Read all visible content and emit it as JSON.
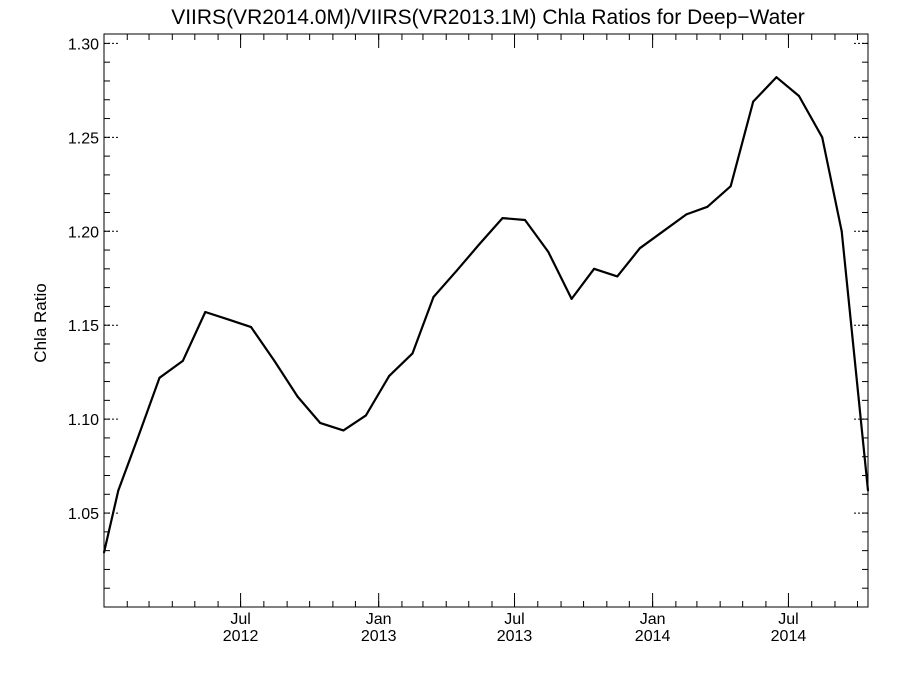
{
  "chart_data": {
    "type": "line",
    "title": "VIIRS(VR2014.0M)/VIIRS(VR2013.1M)  Chla Ratios for Deep−Water",
    "ylabel": "Chla Ratio",
    "xlabel": "",
    "ylim": [
      1.0,
      1.305
    ],
    "yticks": [
      "1.05",
      "1.10",
      "1.15",
      "1.20",
      "1.25",
      "1.30"
    ],
    "xticks": [
      {
        "month": "Jul",
        "year": "2012",
        "date": "2012-07-01"
      },
      {
        "month": "Jan",
        "year": "2013",
        "date": "2013-01-01"
      },
      {
        "month": "Jul",
        "year": "2013",
        "date": "2013-07-01"
      },
      {
        "month": "Jan",
        "year": "2014",
        "date": "2014-01-01"
      },
      {
        "month": "Jul",
        "year": "2014",
        "date": "2014-07-01"
      }
    ],
    "xlim": [
      "2012-01-01",
      "2014-10-15"
    ],
    "grid": false,
    "series": [
      {
        "name": "",
        "color": "#000000",
        "x": [
          "2012-01-01",
          "2012-01-20",
          "2012-02-15",
          "2012-03-15",
          "2012-04-15",
          "2012-05-15",
          "2012-06-15",
          "2012-07-15",
          "2012-08-15",
          "2012-09-15",
          "2012-10-15",
          "2012-11-15",
          "2012-12-15",
          "2013-01-15",
          "2013-02-15",
          "2013-03-15",
          "2013-04-15",
          "2013-05-15",
          "2013-06-15",
          "2013-07-15",
          "2013-08-15",
          "2013-09-15",
          "2013-10-15",
          "2013-11-15",
          "2013-12-15",
          "2014-01-15",
          "2014-02-15",
          "2014-03-15",
          "2014-04-15",
          "2014-05-15",
          "2014-06-15",
          "2014-07-15",
          "2014-08-15",
          "2014-09-10",
          "2014-10-15"
        ],
        "values": [
          1.029,
          1.062,
          1.09,
          1.122,
          1.131,
          1.157,
          1.153,
          1.149,
          1.131,
          1.112,
          1.098,
          1.094,
          1.102,
          1.123,
          1.135,
          1.165,
          1.179,
          1.193,
          1.207,
          1.206,
          1.189,
          1.164,
          1.18,
          1.176,
          1.191,
          1.2,
          1.209,
          1.213,
          1.224,
          1.269,
          1.282,
          1.272,
          1.25,
          1.2,
          1.062
        ]
      }
    ]
  }
}
